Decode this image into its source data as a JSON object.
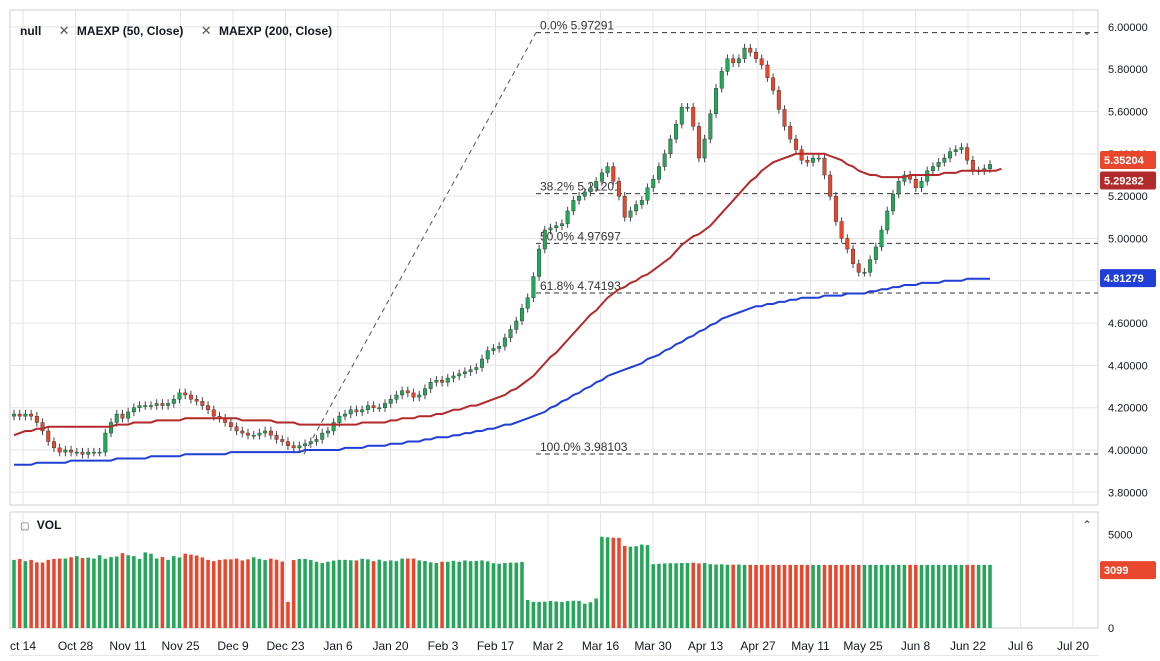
{
  "legend": {
    "symbol": "null",
    "ma50_label": "MAEXP (50, Close)",
    "ma200_label": "MAEXP (200, Close)",
    "close_icon": "close-icon",
    "vol_label": "VOL"
  },
  "badges": {
    "price": "5.35204",
    "ma50": "5.29282",
    "ma200": "4.81279",
    "volume": "3099"
  },
  "colors": {
    "up": "#26a65b",
    "down": "#e8472e",
    "wick": "#444444",
    "ma50": "#b22a2a",
    "ma200": "#1f3fd6",
    "fib_line": "#333333",
    "grid": "#e4e4e4",
    "price_badge": "#e8472e",
    "ma50_badge": "#b22a2a",
    "ma200_badge": "#1f3fd6"
  },
  "chart_data": [
    {
      "type": "candlestick",
      "title": "",
      "yticks": [
        "6.00000",
        "5.80000",
        "5.60000",
        "5.40000",
        "5.20000",
        "5.00000",
        "4.80000",
        "4.60000",
        "4.40000",
        "4.20000",
        "4.00000",
        "3.80000"
      ],
      "ylim": [
        3.74,
        6.08
      ],
      "xticks": [
        "ct 14",
        "Oct 28",
        "Nov 11",
        "Nov 25",
        "Dec 9",
        "Dec 23",
        "Jan 6",
        "Jan 20",
        "Feb 3",
        "Feb 17",
        "Mar 2",
        "Mar 16",
        "Mar 30",
        "Apr 13",
        "Apr 27",
        "May 11",
        "May 25",
        "Jun 8",
        "Jun 22",
        "Jul 6",
        "Jul 20"
      ],
      "grid": true,
      "fibonacci": [
        {
          "label": "0.0% 5.97291",
          "value": 5.97291
        },
        {
          "label": "38.2% 5.21201",
          "value": 5.21201
        },
        {
          "label": "50.0% 4.97697",
          "value": 4.97697
        },
        {
          "label": "61.8% 4.74193",
          "value": 4.74193
        },
        {
          "label": "100.0% 3.98103",
          "value": 3.98103
        }
      ],
      "closes": [
        4.17,
        4.16,
        4.17,
        4.16,
        4.13,
        4.09,
        4.04,
        4.01,
        3.99,
        4.0,
        3.99,
        3.99,
        3.98,
        3.99,
        3.99,
        3.99,
        4.08,
        4.13,
        4.17,
        4.15,
        4.18,
        4.2,
        4.21,
        4.21,
        4.21,
        4.22,
        4.21,
        4.22,
        4.24,
        4.27,
        4.26,
        4.24,
        4.23,
        4.21,
        4.19,
        4.16,
        4.15,
        4.13,
        4.11,
        4.09,
        4.08,
        4.07,
        4.07,
        4.08,
        4.09,
        4.07,
        4.05,
        4.04,
        4.02,
        4.01,
        4.02,
        4.03,
        4.04,
        4.05,
        4.08,
        4.09,
        4.13,
        4.16,
        4.17,
        4.19,
        4.18,
        4.19,
        4.21,
        4.2,
        4.2,
        4.22,
        4.24,
        4.26,
        4.28,
        4.27,
        4.25,
        4.26,
        4.29,
        4.32,
        4.33,
        4.32,
        4.34,
        4.35,
        4.36,
        4.37,
        4.38,
        4.39,
        4.43,
        4.47,
        4.48,
        4.49,
        4.53,
        4.57,
        4.61,
        4.67,
        4.72,
        4.82,
        4.95,
        5.04,
        5.05,
        5.06,
        5.07,
        5.13,
        5.18,
        5.2,
        5.22,
        5.24,
        5.27,
        5.31,
        5.34,
        5.27,
        5.2,
        5.1,
        5.13,
        5.16,
        5.18,
        5.24,
        5.28,
        5.34,
        5.4,
        5.47,
        5.54,
        5.62,
        5.62,
        5.53,
        5.38,
        5.47,
        5.59,
        5.71,
        5.79,
        5.85,
        5.83,
        5.85,
        5.9,
        5.88,
        5.85,
        5.82,
        5.76,
        5.7,
        5.61,
        5.53,
        5.47,
        5.42,
        5.37,
        5.36,
        5.38,
        5.38,
        5.3,
        5.2,
        5.08,
        5.0,
        4.95,
        4.88,
        4.84,
        4.84,
        4.9,
        4.96,
        5.04,
        5.13,
        5.21,
        5.27,
        5.3,
        5.28,
        5.24,
        5.27,
        5.32,
        5.34,
        5.36,
        5.38,
        5.41,
        5.42,
        5.43,
        5.37,
        5.32,
        5.32,
        5.33,
        5.35
      ],
      "series": [
        {
          "name": "MAEXP (50, Close)",
          "values": [
            4.07,
            4.08,
            4.09,
            4.09,
            4.1,
            4.1,
            4.11,
            4.11,
            4.11,
            4.11,
            4.11,
            4.11,
            4.11,
            4.11,
            4.11,
            4.11,
            4.11,
            4.11,
            4.12,
            4.12,
            4.12,
            4.13,
            4.13,
            4.13,
            4.13,
            4.14,
            4.14,
            4.14,
            4.14,
            4.14,
            4.15,
            4.15,
            4.15,
            4.15,
            4.15,
            4.15,
            4.15,
            4.15,
            4.15,
            4.15,
            4.14,
            4.14,
            4.14,
            4.14,
            4.14,
            4.14,
            4.13,
            4.13,
            4.13,
            4.13,
            4.12,
            4.12,
            4.12,
            4.12,
            4.12,
            4.12,
            4.12,
            4.12,
            4.12,
            4.12,
            4.12,
            4.13,
            4.13,
            4.13,
            4.13,
            4.13,
            4.14,
            4.14,
            4.15,
            4.15,
            4.15,
            4.16,
            4.16,
            4.16,
            4.17,
            4.17,
            4.18,
            4.19,
            4.19,
            4.2,
            4.21,
            4.21,
            4.22,
            4.23,
            4.24,
            4.25,
            4.26,
            4.28,
            4.29,
            4.31,
            4.33,
            4.35,
            4.38,
            4.41,
            4.44,
            4.46,
            4.49,
            4.52,
            4.55,
            4.58,
            4.61,
            4.64,
            4.66,
            4.69,
            4.72,
            4.74,
            4.76,
            4.77,
            4.79,
            4.8,
            4.82,
            4.83,
            4.85,
            4.87,
            4.89,
            4.91,
            4.94,
            4.97,
            4.99,
            5.01,
            5.02,
            5.04,
            5.06,
            5.09,
            5.12,
            5.15,
            5.18,
            5.21,
            5.24,
            5.27,
            5.29,
            5.32,
            5.34,
            5.36,
            5.37,
            5.38,
            5.39,
            5.4,
            5.4,
            5.4,
            5.4,
            5.4,
            5.4,
            5.39,
            5.38,
            5.37,
            5.35,
            5.34,
            5.32,
            5.31,
            5.3,
            5.3,
            5.29,
            5.29,
            5.29,
            5.29,
            5.29,
            5.3,
            5.3,
            5.3,
            5.3,
            5.3,
            5.3,
            5.31,
            5.31,
            5.31,
            5.32,
            5.32,
            5.32,
            5.32,
            5.32,
            5.32,
            5.32,
            5.33
          ]
        },
        {
          "name": "MAEXP (200, Close)",
          "values": [
            3.93,
            3.93,
            3.93,
            3.93,
            3.94,
            3.94,
            3.94,
            3.94,
            3.94,
            3.94,
            3.95,
            3.95,
            3.95,
            3.95,
            3.95,
            3.95,
            3.95,
            3.95,
            3.96,
            3.96,
            3.96,
            3.96,
            3.96,
            3.96,
            3.97,
            3.97,
            3.97,
            3.97,
            3.97,
            3.97,
            3.98,
            3.98,
            3.98,
            3.98,
            3.98,
            3.98,
            3.98,
            3.98,
            3.99,
            3.99,
            3.99,
            3.99,
            3.99,
            3.99,
            3.99,
            3.99,
            3.99,
            3.99,
            3.99,
            3.99,
            3.99,
            4.0,
            4.0,
            4.0,
            4.0,
            4.0,
            4.0,
            4.0,
            4.01,
            4.01,
            4.01,
            4.01,
            4.02,
            4.02,
            4.02,
            4.02,
            4.03,
            4.03,
            4.03,
            4.04,
            4.04,
            4.04,
            4.05,
            4.05,
            4.06,
            4.06,
            4.06,
            4.07,
            4.07,
            4.08,
            4.08,
            4.09,
            4.09,
            4.1,
            4.1,
            4.11,
            4.12,
            4.12,
            4.13,
            4.14,
            4.15,
            4.16,
            4.17,
            4.18,
            4.2,
            4.21,
            4.23,
            4.24,
            4.26,
            4.27,
            4.29,
            4.3,
            4.32,
            4.33,
            4.35,
            4.36,
            4.37,
            4.38,
            4.39,
            4.4,
            4.41,
            4.43,
            4.44,
            4.45,
            4.47,
            4.48,
            4.5,
            4.51,
            4.53,
            4.54,
            4.56,
            4.57,
            4.59,
            4.6,
            4.62,
            4.63,
            4.64,
            4.65,
            4.66,
            4.67,
            4.68,
            4.68,
            4.69,
            4.69,
            4.7,
            4.7,
            4.71,
            4.71,
            4.72,
            4.72,
            4.72,
            4.72,
            4.73,
            4.73,
            4.73,
            4.73,
            4.74,
            4.74,
            4.74,
            4.74,
            4.75,
            4.75,
            4.76,
            4.76,
            4.77,
            4.77,
            4.78,
            4.78,
            4.78,
            4.79,
            4.79,
            4.79,
            4.79,
            4.8,
            4.8,
            4.8,
            4.8,
            4.81,
            4.81,
            4.81,
            4.81,
            4.81
          ]
        }
      ]
    },
    {
      "type": "bar",
      "title": "VOL",
      "yticks": [
        "5000",
        "0"
      ],
      "ylim": [
        0,
        6000
      ],
      "values": [
        3650,
        3700,
        3580,
        3650,
        3520,
        3510,
        3650,
        3700,
        3720,
        3720,
        3790,
        3850,
        3750,
        3770,
        3720,
        3900,
        3710,
        3800,
        3830,
        4010,
        3900,
        3850,
        3700,
        4050,
        3980,
        3720,
        3800,
        3650,
        3850,
        3780,
        3980,
        3930,
        3880,
        3780,
        3650,
        3580,
        3650,
        3680,
        3680,
        3720,
        3620,
        3680,
        3790,
        3700,
        3640,
        3720,
        3660,
        3560,
        1400,
        3640,
        3700,
        3700,
        3640,
        3550,
        3480,
        3550,
        3610,
        3650,
        3650,
        3630,
        3620,
        3710,
        3680,
        3580,
        3660,
        3580,
        3620,
        3580,
        3720,
        3720,
        3720,
        3620,
        3590,
        3520,
        3480,
        3550,
        3550,
        3600,
        3550,
        3620,
        3580,
        3590,
        3620,
        3570,
        3470,
        3440,
        3480,
        3500,
        3500,
        3540,
        1500,
        1400,
        1400,
        1410,
        1450,
        1420,
        1400,
        1440,
        1460,
        1450,
        1300,
        1380,
        1580,
        4890,
        4860,
        4840,
        4830,
        4400,
        4360,
        4380,
        4470,
        4440,
        3420,
        3440,
        3460,
        3470,
        3470,
        3480,
        3480,
        3500,
        3460,
        3480,
        3420,
        3400,
        3410,
        3390,
        3390,
        3400,
        3380,
        3380,
        3380,
        3380,
        3380,
        3380,
        3380,
        3380,
        3380,
        3380,
        3380,
        3380,
        3380,
        3380,
        3380,
        3380,
        3380,
        3380,
        3380,
        3380,
        3380,
        3380,
        3380,
        3380,
        3380,
        3380,
        3380,
        3380,
        3380,
        3380,
        3380,
        3380,
        3380,
        3380,
        3380,
        3380,
        3380,
        3380,
        3380,
        3380,
        3380,
        3380,
        3380,
        3380,
        3380,
        3099
      ]
    }
  ]
}
